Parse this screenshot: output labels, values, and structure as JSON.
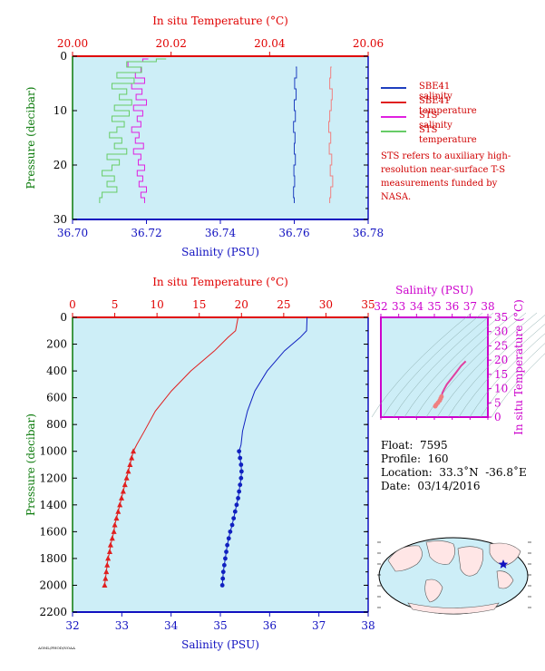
{
  "chart_data": [
    {
      "type": "line",
      "top_axis_title": "In situ Temperature (°C)",
      "bottom_axis_title": "Salinity (PSU)",
      "ylabel": "Pressure (decibar)",
      "ylim": [
        0,
        30
      ],
      "y_ticks": [
        "0",
        "10",
        "20",
        "30"
      ],
      "xlim_temperature": [
        20.0,
        20.06
      ],
      "temperature_ticks": [
        "20.00",
        "20.02",
        "20.04",
        "20.06"
      ],
      "xlim_salinity": [
        36.7,
        36.78
      ],
      "salinity_ticks": [
        "36.70",
        "36.72",
        "36.74",
        "36.76",
        "36.78"
      ],
      "series": [
        {
          "name": "SBE41 salinity",
          "axis": "salinity",
          "color": "#1f3fbf",
          "pressure": [
            2,
            4,
            6,
            8,
            10,
            12,
            14,
            16,
            18,
            20,
            22,
            24,
            26,
            27
          ],
          "values": [
            36.7604,
            36.7606,
            36.7601,
            36.7605,
            36.76,
            36.7603,
            36.7598,
            36.7602,
            36.76,
            36.7603,
            36.7599,
            36.7601,
            36.7598,
            36.76
          ]
        },
        {
          "name": "SBE41 temperature",
          "axis": "temperature",
          "color": "#f08080",
          "pressure": [
            2,
            4,
            6,
            8,
            10,
            12,
            14,
            16,
            18,
            20,
            22,
            24,
            26,
            27
          ],
          "values": [
            20.0526,
            20.0524,
            20.0522,
            20.0527,
            20.0525,
            20.0522,
            20.052,
            20.0524,
            20.0521,
            20.0526,
            20.0523,
            20.0528,
            20.0524,
            20.0522
          ]
        },
        {
          "name": "STS salinity",
          "axis": "salinity",
          "color": "#e020e0",
          "pressure": [
            0.5,
            1,
            2,
            3,
            4,
            5,
            6,
            7,
            8,
            9,
            10,
            11,
            12,
            13,
            14,
            15,
            16,
            17,
            18,
            19,
            20,
            21,
            22,
            23,
            24,
            25,
            26,
            27
          ],
          "values": [
            36.7205,
            36.719,
            36.715,
            36.7185,
            36.717,
            36.7195,
            36.716,
            36.7188,
            36.7172,
            36.72,
            36.7165,
            36.719,
            36.7175,
            36.7185,
            36.716,
            36.718,
            36.717,
            36.7192,
            36.7165,
            36.7185,
            36.7178,
            36.7195,
            36.7175,
            36.719,
            36.718,
            36.72,
            36.7185,
            36.7195
          ]
        },
        {
          "name": "STS temperature",
          "axis": "temperature",
          "color": "#66cc66",
          "pressure": [
            0.5,
            1,
            2,
            3,
            4,
            5,
            6,
            7,
            8,
            9,
            10,
            11,
            12,
            13,
            14,
            15,
            16,
            17,
            18,
            19,
            20,
            21,
            22,
            23,
            24,
            25,
            26,
            27
          ],
          "values": [
            20.019,
            20.017,
            20.011,
            20.014,
            20.009,
            20.0125,
            20.008,
            20.011,
            20.0095,
            20.012,
            20.0085,
            20.0115,
            20.008,
            20.0105,
            20.009,
            20.0075,
            20.01,
            20.0085,
            20.011,
            20.007,
            20.0095,
            20.008,
            20.006,
            20.0085,
            20.007,
            20.009,
            20.006,
            20.0055
          ]
        }
      ],
      "legend_placement": "right",
      "note": "STS refers to auxiliary high-resolution near-surface T-S measurements funded by NASA."
    },
    {
      "type": "line",
      "top_axis_title": "In situ Temperature (°C)",
      "bottom_axis_title": "Salinity (PSU)",
      "ylabel": "Pressure (decibar)",
      "ylim": [
        0,
        2200
      ],
      "y_ticks": [
        "0",
        "200",
        "400",
        "600",
        "800",
        "1000",
        "1200",
        "1400",
        "1600",
        "1800",
        "2000",
        "2200"
      ],
      "xlim_temperature": [
        0,
        35
      ],
      "temperature_ticks": [
        "0",
        "5",
        "10",
        "15",
        "20",
        "25",
        "30",
        "35"
      ],
      "xlim_salinity": [
        32,
        38
      ],
      "salinity_ticks": [
        "32",
        "33",
        "34",
        "35",
        "36",
        "37",
        "38"
      ],
      "series": [
        {
          "name": "temperature",
          "axis": "temperature",
          "color": "#e02020",
          "marker": "triangle",
          "pressure": [
            0,
            100,
            150,
            250,
            400,
            550,
            700,
            850,
            950,
            1000,
            1050,
            1100,
            1150,
            1200,
            1250,
            1300,
            1350,
            1400,
            1450,
            1500,
            1550,
            1600,
            1650,
            1700,
            1750,
            1800,
            1850,
            1900,
            1950,
            2000
          ],
          "values": [
            19.6,
            19.3,
            18.4,
            16.8,
            14.0,
            11.7,
            9.8,
            8.5,
            7.6,
            7.2,
            7.0,
            6.8,
            6.6,
            6.4,
            6.2,
            6.0,
            5.8,
            5.6,
            5.4,
            5.2,
            5.0,
            4.9,
            4.7,
            4.5,
            4.4,
            4.2,
            4.1,
            4.0,
            3.9,
            3.8
          ]
        },
        {
          "name": "salinity",
          "axis": "salinity",
          "color": "#1020c0",
          "marker": "dot",
          "pressure": [
            0,
            100,
            150,
            250,
            400,
            550,
            700,
            850,
            950,
            1000,
            1050,
            1100,
            1150,
            1200,
            1250,
            1300,
            1350,
            1400,
            1450,
            1500,
            1550,
            1600,
            1650,
            1700,
            1750,
            1800,
            1850,
            1900,
            1950,
            2000
          ],
          "values": [
            36.76,
            36.75,
            36.62,
            36.3,
            35.95,
            35.7,
            35.55,
            35.45,
            35.42,
            35.38,
            35.4,
            35.42,
            35.43,
            35.42,
            35.4,
            35.38,
            35.36,
            35.33,
            35.3,
            35.27,
            35.24,
            35.2,
            35.17,
            35.14,
            35.12,
            35.1,
            35.08,
            35.06,
            35.05,
            35.04
          ]
        }
      ]
    },
    {
      "type": "scatter",
      "xlabel": "Salinity (PSU)",
      "ylabel": "In situ Temperature (°C)",
      "xlim": [
        32,
        38
      ],
      "ylim": [
        0,
        35
      ],
      "x_ticks": [
        "32",
        "33",
        "34",
        "35",
        "36",
        "37",
        "38"
      ],
      "y_ticks": [
        "0",
        "5",
        "10",
        "15",
        "20",
        "25",
        "30",
        "35"
      ],
      "points": [
        [
          36.76,
          19.6
        ],
        [
          36.5,
          18.0
        ],
        [
          36.2,
          15.5
        ],
        [
          35.95,
          13.5
        ],
        [
          35.7,
          11.5
        ],
        [
          35.55,
          9.8
        ],
        [
          35.45,
          8.5
        ],
        [
          35.4,
          7.2
        ],
        [
          35.35,
          6.5
        ],
        [
          35.3,
          5.8
        ],
        [
          35.2,
          5.0
        ],
        [
          35.1,
          4.3
        ],
        [
          35.05,
          3.8
        ]
      ]
    }
  ],
  "info": {
    "float": "Float:  7595",
    "profile": "Profile:  160",
    "location": "Location:  33.3˚N  -36.8˚E",
    "date": "Date:  03/14/2016"
  },
  "footnote": "AOML/PHOD/NOAA",
  "colors": {
    "plot_bg": "#cdeef7",
    "temperature_axis": "#e00000",
    "salinity_axis": "#1010c0",
    "ts_axis": "#cc00cc",
    "pressure_label": "#0a7a0a"
  }
}
